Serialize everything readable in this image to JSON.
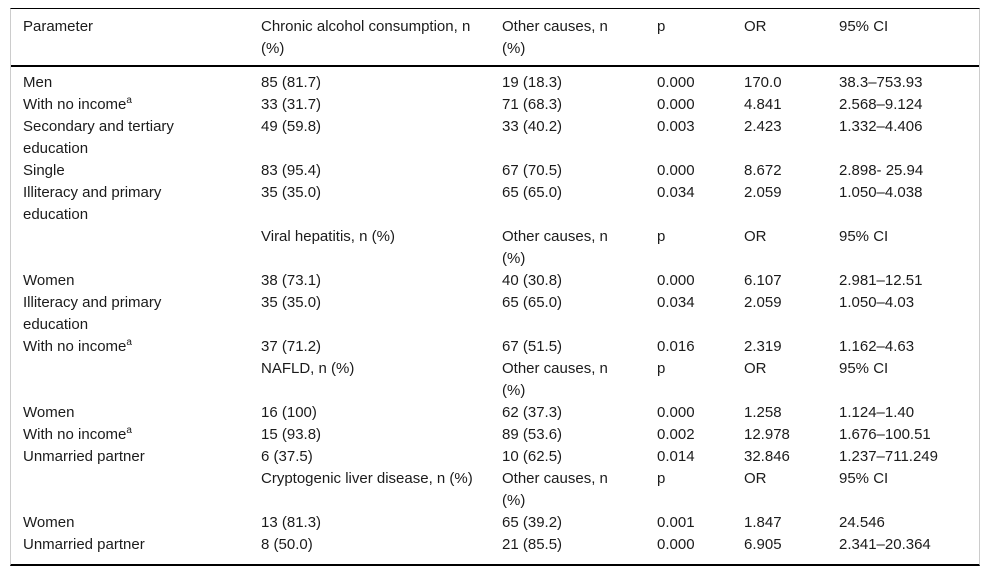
{
  "document": {
    "background": "#ffffff",
    "text_color": "#1b1b1b",
    "rule_color": "#000000",
    "side_rule_color": "#cccccc"
  },
  "table": {
    "columns": [
      {
        "label": "Parameter"
      },
      {
        "label": "Chronic alcohol consumption, n (%)"
      },
      {
        "label": "Other causes, n (%)"
      },
      {
        "label": "p"
      },
      {
        "label": "OR"
      },
      {
        "label": "95% CI"
      }
    ],
    "rows": [
      {
        "kind": "data",
        "cells": [
          "Men",
          "85 (81.7)",
          "19 (18.3)",
          "0.000",
          "170.0",
          "38.3–753.93"
        ]
      },
      {
        "kind": "data",
        "cells": [
          "With no income^a",
          "33 (31.7)",
          "71 (68.3)",
          "0.000",
          "4.841",
          "2.568–9.124"
        ]
      },
      {
        "kind": "data",
        "cells": [
          "Secondary and tertiary education",
          "49 (59.8)",
          "33 (40.2)",
          "0.003",
          "2.423",
          "1.332–4.406"
        ]
      },
      {
        "kind": "data",
        "cells": [
          "Single",
          "83 (95.4)",
          "67 (70.5)",
          "0.000",
          "8.672",
          "2.898- 25.94"
        ]
      },
      {
        "kind": "data",
        "cells": [
          "Illiteracy and primary education",
          "35 (35.0)",
          "65 (65.0)",
          "0.034",
          "2.059",
          "1.050–4.038"
        ]
      },
      {
        "kind": "subheader",
        "cells": [
          "",
          "Viral hepatitis, n (%)",
          "Other causes, n (%)",
          "p",
          "OR",
          "95% CI"
        ]
      },
      {
        "kind": "data",
        "cells": [
          "Women",
          "38 (73.1)",
          "40 (30.8)",
          "0.000",
          "6.107",
          "2.981–12.51"
        ]
      },
      {
        "kind": "data",
        "cells": [
          "Illiteracy and primary education",
          "35 (35.0)",
          "65 (65.0)",
          "0.034",
          "2.059",
          "1.050–4.03"
        ]
      },
      {
        "kind": "data",
        "cells": [
          "With no income^a",
          "37 (71.2)",
          "67 (51.5)",
          "0.016",
          "2.319",
          "1.162–4.63"
        ]
      },
      {
        "kind": "subheader",
        "cells": [
          "",
          "NAFLD, n (%)",
          "Other causes, n (%)",
          "p",
          "OR",
          "95% CI"
        ]
      },
      {
        "kind": "data",
        "cells": [
          "Women",
          "16 (100)",
          "62 (37.3)",
          "0.000",
          "1.258",
          "1.124–1.40"
        ]
      },
      {
        "kind": "data",
        "cells": [
          "With no income^a",
          "15 (93.8)",
          "89 (53.6)",
          "0.002",
          "12.978",
          "1.676–100.51"
        ]
      },
      {
        "kind": "data",
        "cells": [
          "Unmarried partner",
          "6 (37.5)",
          "10 (62.5)",
          "0.014",
          "32.846",
          "1.237–711.249"
        ]
      },
      {
        "kind": "subheader",
        "cells": [
          "",
          "Cryptogenic liver disease, n (%)",
          "Other causes, n (%)",
          "p",
          "OR",
          "95% CI"
        ]
      },
      {
        "kind": "data",
        "cells": [
          "Women",
          "13 (81.3)",
          "65 (39.2)",
          "0.001",
          "1.847",
          "24.546"
        ]
      },
      {
        "kind": "data",
        "cells": [
          "Unmarried partner",
          "8 (50.0)",
          "21 (85.5)",
          "0.000",
          "6.905",
          "2.341–20.364"
        ]
      }
    ],
    "footnote_marker": "a"
  }
}
